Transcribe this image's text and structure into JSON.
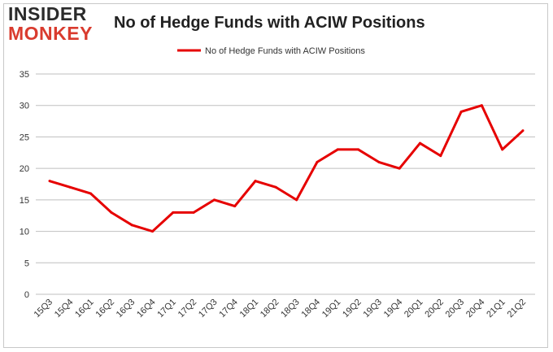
{
  "logo": {
    "top": "INSIDER",
    "bottom": "MONKEY"
  },
  "chart_data": {
    "type": "line",
    "title": "No of Hedge Funds with ACIW Positions",
    "xlabel": "",
    "ylabel": "",
    "categories": [
      "15Q3",
      "15Q4",
      "16Q1",
      "16Q2",
      "16Q3",
      "16Q4",
      "17Q1",
      "17Q2",
      "17Q3",
      "17Q4",
      "18Q1",
      "18Q2",
      "18Q3",
      "18Q4",
      "19Q1",
      "19Q2",
      "19Q3",
      "19Q4",
      "20Q1",
      "20Q2",
      "20Q3",
      "20Q4",
      "21Q1",
      "21Q2"
    ],
    "series": [
      {
        "name": "No of Hedge Funds with ACIW Positions",
        "color": "#e60000",
        "values": [
          18,
          17,
          16,
          13,
          11,
          10,
          13,
          13,
          15,
          14,
          18,
          17,
          15,
          21,
          23,
          23,
          21,
          20,
          24,
          22,
          29,
          30,
          23,
          26
        ]
      }
    ],
    "ylim": [
      0,
      35
    ],
    "yticks": [
      0,
      5,
      10,
      15,
      20,
      25,
      30,
      35
    ],
    "grid": true,
    "legend": "top-center"
  }
}
